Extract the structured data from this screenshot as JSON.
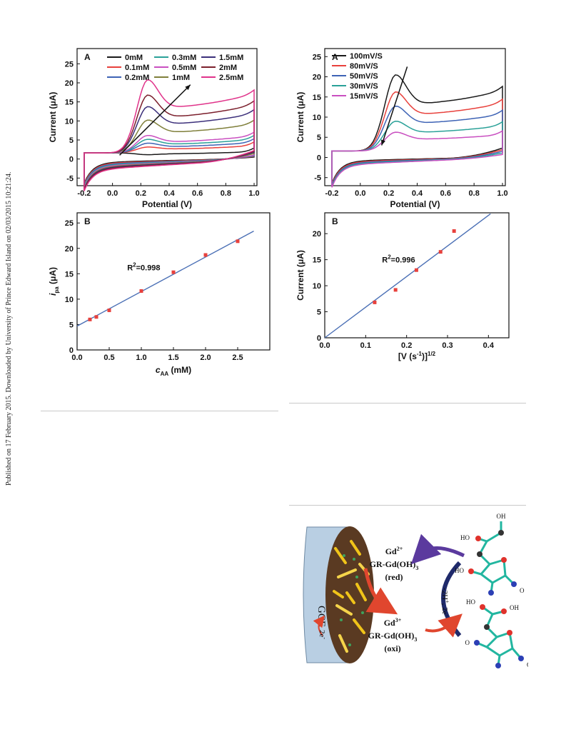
{
  "side_note": "Published on 17 February 2015. Downloaded by University of Prince Edward Island on 02/03/2015 10:21:24.",
  "chart_data": [
    {
      "id": "fig-left-A",
      "type": "line",
      "panel_label": "A",
      "xlabel": "Potential (V)",
      "ylabel": "Current (μA)",
      "xlim": [
        -0.25,
        1.02
      ],
      "ylim": [
        -7,
        29
      ],
      "xticks": [
        -0.2,
        0.0,
        0.2,
        0.4,
        0.6,
        0.8,
        1.0
      ],
      "yticks": [
        -5,
        0,
        5,
        10,
        15,
        20,
        25
      ],
      "legend_columns": 3,
      "series": [
        {
          "name": "0mM",
          "color": "#1a1a1a",
          "peak": 1.5,
          "base": 1.0
        },
        {
          "name": "0.1mM",
          "color": "#e8413c",
          "peak": 3.5,
          "base": 1.6
        },
        {
          "name": "0.2mM",
          "color": "#3e63b5",
          "peak": 4.5,
          "base": 2.0
        },
        {
          "name": "0.3mM",
          "color": "#2aa198",
          "peak": 5.5,
          "base": 2.4
        },
        {
          "name": "0.5mM",
          "color": "#c94fc0",
          "peak": 6.5,
          "base": 2.8
        },
        {
          "name": "1mM",
          "color": "#7f7f3a",
          "peak": 10.5,
          "base": 4.0
        },
        {
          "name": "1.5mM",
          "color": "#3b2f7a",
          "peak": 14.0,
          "base": 5.0
        },
        {
          "name": "2mM",
          "color": "#7b1f2c",
          "peak": 17.0,
          "base": 5.8
        },
        {
          "name": "2.5mM",
          "color": "#e0338a",
          "peak": 21.0,
          "base": 6.5
        }
      ]
    },
    {
      "id": "fig-right-A",
      "type": "line",
      "panel_label": "A",
      "xlabel": "Potential (V)",
      "ylabel": "Current (μA)",
      "xlim": [
        -0.25,
        1.02
      ],
      "ylim": [
        -7,
        27
      ],
      "xticks": [
        -0.2,
        0.0,
        0.2,
        0.4,
        0.6,
        0.8,
        1.0
      ],
      "yticks": [
        -5,
        0,
        5,
        10,
        15,
        20,
        25
      ],
      "legend_columns": 1,
      "series": [
        {
          "name": "100mV/S",
          "color": "#1a1a1a",
          "peak": 20.7,
          "base": 6.0
        },
        {
          "name": "80mV/S",
          "color": "#e8413c",
          "peak": 16.5,
          "base": 5.0
        },
        {
          "name": "50mV/S",
          "color": "#3e63b5",
          "peak": 13.0,
          "base": 4.0
        },
        {
          "name": "30mV/S",
          "color": "#2aa198",
          "peak": 9.3,
          "base": 3.0
        },
        {
          "name": "15mV/S",
          "color": "#c94fc0",
          "peak": 6.6,
          "base": 2.0
        }
      ]
    },
    {
      "id": "fig-left-B",
      "type": "scatter",
      "panel_label": "B",
      "xlabel_main": "c",
      "xlabel_sub": "AA",
      "xlabel_unit": " (mM)",
      "ylabel_main": "i",
      "ylabel_sub": "pa",
      "ylabel_unit": " (μA)",
      "annotation_main": "R",
      "annotation_sup": "2",
      "annotation_val": "=0.998",
      "xlim": [
        0.0,
        3.0
      ],
      "ylim": [
        0,
        27
      ],
      "xticks": [
        0.0,
        0.5,
        1.0,
        1.5,
        2.0,
        2.5
      ],
      "yticks": [
        0,
        5,
        10,
        15,
        20,
        25
      ],
      "x": [
        0.2,
        0.3,
        0.5,
        1.0,
        1.5,
        2.0,
        2.5
      ],
      "y": [
        6.0,
        6.5,
        7.8,
        11.6,
        15.3,
        18.7,
        21.4
      ],
      "fit": {
        "x": [
          0.0,
          2.75
        ],
        "y": [
          4.7,
          23.4
        ]
      },
      "marker_color": "#e8413c",
      "line_color": "#4a6fb5"
    },
    {
      "id": "fig-right-B",
      "type": "scatter",
      "panel_label": "B",
      "xlabel_main": "[V (s",
      "xlabel_sup1": "-1",
      "xlabel_mid": ")]",
      "xlabel_sup2": "1/2",
      "ylabel": "Current (μA)",
      "annotation_main": "R",
      "annotation_sup": "2",
      "annotation_val": "=0.996",
      "xlim": [
        0.0,
        0.45
      ],
      "ylim": [
        0,
        24
      ],
      "xticks": [
        0.0,
        0.1,
        0.2,
        0.3,
        0.4
      ],
      "yticks": [
        0,
        5,
        10,
        15,
        20
      ],
      "x": [
        0.122,
        0.173,
        0.224,
        0.283,
        0.316
      ],
      "y": [
        6.8,
        9.2,
        13.0,
        16.5,
        20.5
      ],
      "fit": {
        "x": [
          0.0,
          0.405
        ],
        "y": [
          0.0,
          23.8
        ]
      },
      "marker_color": "#e8413c",
      "line_color": "#4a6fb5"
    }
  ],
  "scheme": {
    "electrode": "GCE",
    "electron": "2e",
    "electron_sup": "-",
    "red_ion": "Gd",
    "red_ion_sup": "2+",
    "red_compound": "GR-Gd(OH)",
    "red_compound_sub": "3",
    "red_state": "(red)",
    "oxi_ion": "Gd",
    "oxi_ion_sup": "3+",
    "oxi_compound": "GR-Gd(OH)",
    "oxi_compound_sub": "3",
    "oxi_state": "(oxi)",
    "reaction_a": "-2H",
    "reaction_a_sup": "+",
    "reaction_b": ", 2e",
    "reaction_b_sup": "-",
    "atom_oh": "OH",
    "atom_ho": "HO",
    "atom_o": "O",
    "colors": {
      "electrode_side": "#b9cfe3",
      "electrode_face": "#5a3a22",
      "arrow_purple": "#5b3a9e",
      "arrow_navy": "#1f2a6b",
      "arrow_red": "#e0462e",
      "bond": "#22b6a0",
      "atom_red": "#e0322c",
      "atom_dark": "#333333",
      "atom_blue": "#2c3fb5"
    }
  }
}
